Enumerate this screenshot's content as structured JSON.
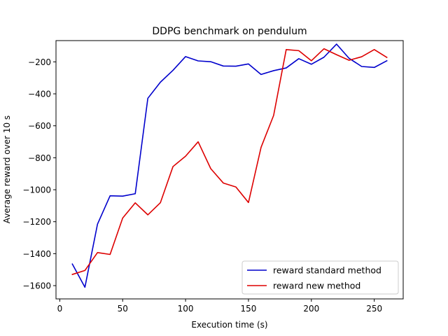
{
  "chart_data": {
    "type": "line",
    "title": "DDPG benchmark on pendulum",
    "xlabel": "Execution time (s)",
    "ylabel": "Average reward over 10 s",
    "xlim": [
      -3,
      273
    ],
    "ylim": [
      -1683,
      -67
    ],
    "xticks": [
      0,
      50,
      100,
      150,
      200,
      250
    ],
    "yticks": [
      -1600,
      -1400,
      -1200,
      -1000,
      -800,
      -600,
      -400,
      -200
    ],
    "grid": false,
    "legend_position": "lower-right",
    "x": [
      10,
      20,
      30,
      40,
      50,
      60,
      70,
      80,
      90,
      100,
      110,
      120,
      130,
      140,
      150,
      160,
      170,
      180,
      190,
      200,
      210,
      220,
      230,
      240,
      250,
      260
    ],
    "series": [
      {
        "name": "reward standard method",
        "color": "#0000cc",
        "values": [
          -1465,
          -1610,
          -1215,
          -1038,
          -1040,
          -1025,
          -428,
          -327,
          -253,
          -167,
          -194,
          -199,
          -226,
          -227,
          -213,
          -279,
          -255,
          -238,
          -180,
          -215,
          -171,
          -89,
          -178,
          -229,
          -235,
          -193
        ]
      },
      {
        "name": "reward new method",
        "color": "#dd0000",
        "values": [
          -1530,
          -1505,
          -1393,
          -1405,
          -1177,
          -1082,
          -1157,
          -1081,
          -855,
          -790,
          -700,
          -868,
          -958,
          -983,
          -1080,
          -735,
          -535,
          -123,
          -130,
          -193,
          -118,
          -155,
          -190,
          -168,
          -123,
          -172
        ]
      }
    ]
  }
}
